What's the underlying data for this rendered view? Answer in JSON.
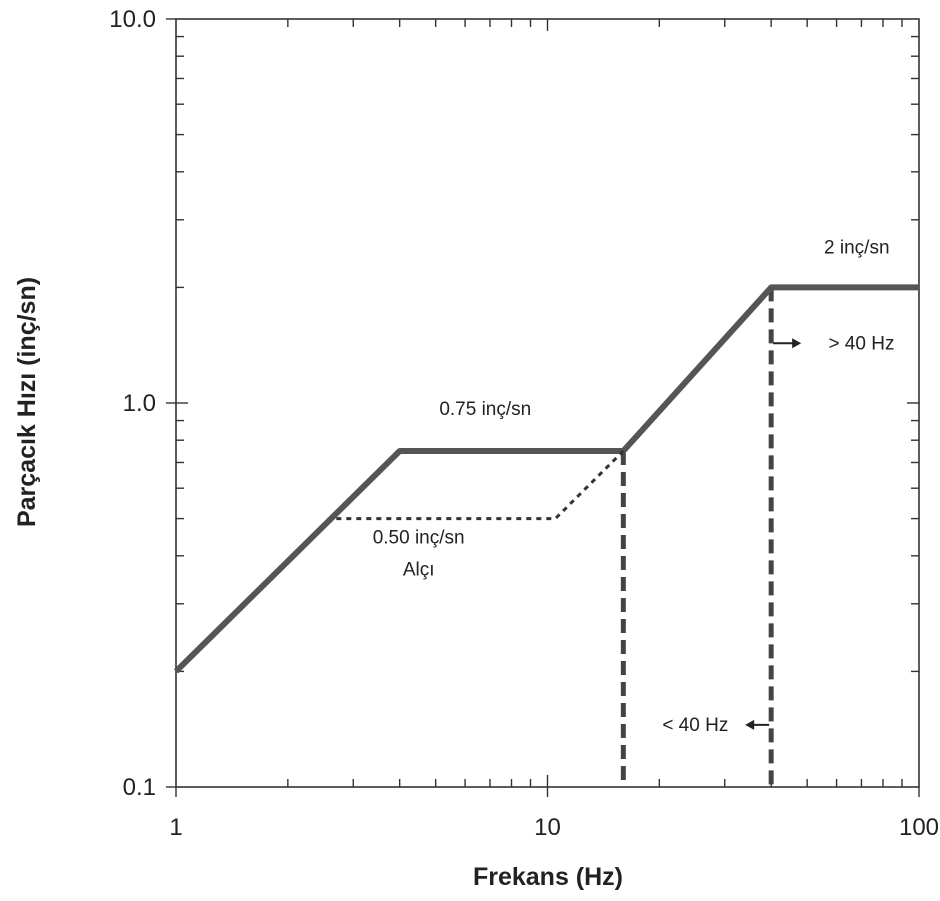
{
  "chart_data": {
    "type": "line",
    "xlabel": "Frekans (Hz)",
    "ylabel": "Parçacık Hızı (inç/sn)",
    "xscale": "log",
    "yscale": "log",
    "xlim": [
      1,
      100
    ],
    "ylim": [
      0.1,
      10
    ],
    "x_tick_labels": [
      {
        "value": 1,
        "label": "1"
      },
      {
        "value": 10,
        "label": "10"
      },
      {
        "value": 100,
        "label": "100"
      }
    ],
    "y_tick_labels": [
      {
        "value": 0.1,
        "label": "0.1"
      },
      {
        "value": 1,
        "label": "1.0"
      },
      {
        "value": 10,
        "label": "10.0"
      }
    ],
    "grid": false,
    "series": [
      {
        "style": "solid",
        "color": "#555555",
        "points": [
          [
            1,
            0.2
          ],
          [
            4,
            0.75
          ],
          [
            16,
            0.75
          ],
          [
            40,
            2
          ],
          [
            100,
            2
          ]
        ]
      },
      {
        "style": "dotted",
        "color": "#333333",
        "points": [
          [
            2.7,
            0.5
          ],
          [
            10.5,
            0.5
          ],
          [
            16,
            0.75
          ]
        ]
      }
    ],
    "vertical_lines": [
      {
        "x": 16,
        "style": "dashed"
      },
      {
        "x": 40,
        "style": "dashed"
      }
    ],
    "annotations": [
      {
        "text": "0.75 inç/sn",
        "x": 6.8,
        "y": 0.93
      },
      {
        "text": "0.50 inç/sn",
        "x": 4.5,
        "y": 0.43
      },
      {
        "text": "Alçı",
        "x": 4.5,
        "y": 0.355
      },
      {
        "text": "2 inç/sn",
        "x": 68,
        "y": 2.45
      },
      {
        "text": "> 40 Hz",
        "x": 70,
        "y": 1.38
      },
      {
        "text": "< 40 Hz",
        "x": 25,
        "y": 0.14
      }
    ]
  }
}
